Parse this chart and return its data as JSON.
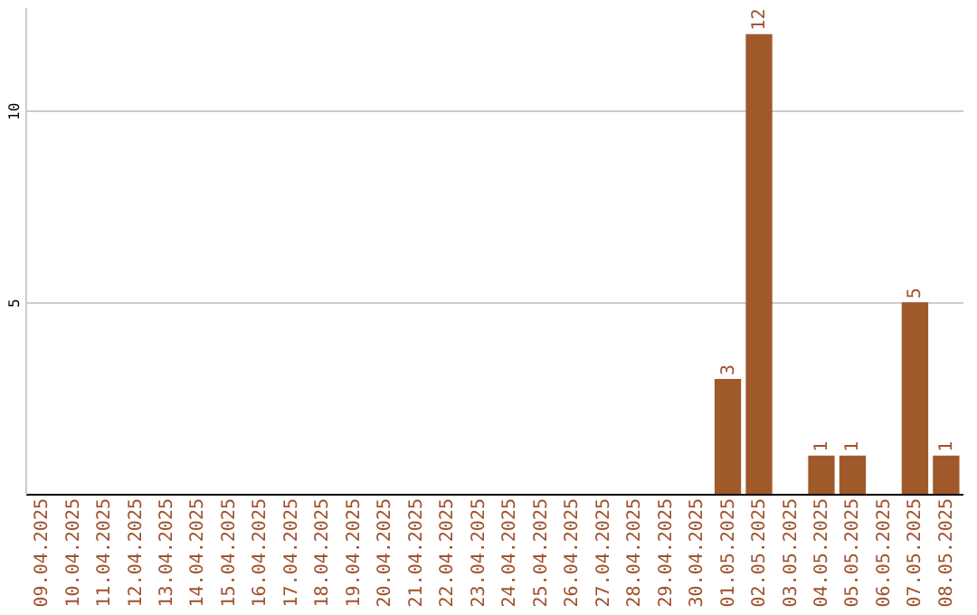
{
  "chart_data": {
    "type": "bar",
    "categories": [
      "09.04.2025",
      "10.04.2025",
      "11.04.2025",
      "12.04.2025",
      "13.04.2025",
      "14.04.2025",
      "15.04.2025",
      "16.04.2025",
      "17.04.2025",
      "18.04.2025",
      "19.04.2025",
      "20.04.2025",
      "21.04.2025",
      "22.04.2025",
      "23.04.2025",
      "24.04.2025",
      "25.04.2025",
      "26.04.2025",
      "27.04.2025",
      "28.04.2025",
      "29.04.2025",
      "30.04.2025",
      "01.05.2025",
      "02.05.2025",
      "03.05.2025",
      "04.05.2025",
      "05.05.2025",
      "06.05.2025",
      "07.05.2025",
      "08.05.2025"
    ],
    "values": [
      0,
      0,
      0,
      0,
      0,
      0,
      0,
      0,
      0,
      0,
      0,
      0,
      0,
      0,
      0,
      0,
      0,
      0,
      0,
      0,
      0,
      0,
      3,
      12,
      0,
      1,
      1,
      0,
      5,
      1
    ],
    "value_labels": [
      null,
      null,
      null,
      null,
      null,
      null,
      null,
      null,
      null,
      null,
      null,
      null,
      null,
      null,
      null,
      null,
      null,
      null,
      null,
      null,
      null,
      null,
      "3",
      "12",
      null,
      "1",
      "1",
      null,
      "5",
      "1"
    ],
    "color": "#a0592b",
    "ylim": [
      0,
      12.7
    ],
    "yticks": [
      5,
      10
    ],
    "grid": "y"
  }
}
